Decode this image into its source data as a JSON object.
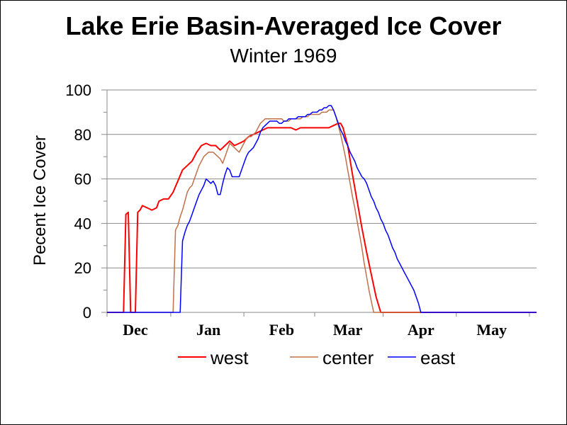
{
  "title": "Lake Erie Basin-Averaged Ice Cover",
  "subtitle": "Winter 1969",
  "chart_data": {
    "type": "line",
    "title": "Lake Erie Basin-Averaged Ice Cover",
    "subtitle": "Winter 1969",
    "ylabel": "Pecent Ice Cover",
    "xlabel": "",
    "ylim": [
      0,
      100
    ],
    "yticks": [
      0,
      20,
      40,
      60,
      80,
      100
    ],
    "xlim": [
      0,
      182
    ],
    "x_unit": "days since Nov 19",
    "xticks": [
      {
        "label": "Dec",
        "x": 12
      },
      {
        "label": "Jan",
        "x": 43
      },
      {
        "label": "Feb",
        "x": 74
      },
      {
        "label": "Mar",
        "x": 102
      },
      {
        "label": "Apr",
        "x": 133
      },
      {
        "label": "May",
        "x": 163
      }
    ],
    "grid": "horizontal",
    "legend": "bottom",
    "series": [
      {
        "name": "west",
        "color": "#ff0000",
        "width": 2,
        "x": [
          0,
          7,
          8,
          9,
          10,
          11,
          12,
          13,
          14,
          15,
          17,
          19,
          21,
          22,
          24,
          26,
          28,
          30,
          32,
          34,
          36,
          38,
          40,
          42,
          44,
          46,
          48,
          50,
          52,
          54,
          56,
          58,
          60,
          62,
          64,
          66,
          68,
          70,
          72,
          74,
          76,
          78,
          80,
          82,
          84,
          86,
          88,
          90,
          92,
          94,
          96,
          98,
          99,
          100,
          102,
          104,
          106,
          108,
          110,
          112,
          114,
          116,
          118,
          120,
          122,
          182
        ],
        "y": [
          0,
          0,
          44,
          45,
          0,
          0,
          0,
          45,
          46,
          48,
          47,
          46,
          47,
          50,
          51,
          51,
          54,
          59,
          64,
          66,
          68,
          72,
          75,
          76,
          75,
          75,
          73,
          75,
          77,
          75,
          76,
          77,
          79,
          80,
          81,
          82,
          83,
          83,
          83,
          83,
          83,
          83,
          82,
          83,
          83,
          83,
          83,
          83,
          83,
          83,
          84,
          85,
          85,
          83,
          75,
          62,
          50,
          38,
          27,
          17,
          7,
          0,
          0,
          0,
          0,
          0
        ]
      },
      {
        "name": "center",
        "color": "#c0704a",
        "width": 1.5,
        "x": [
          0,
          28,
          29,
          30,
          31,
          32,
          33,
          34,
          35,
          36,
          37,
          38,
          39,
          40,
          41,
          42,
          43,
          44,
          45,
          46,
          47,
          48,
          49,
          50,
          51,
          52,
          53,
          54,
          55,
          56,
          57,
          58,
          59,
          60,
          61,
          62,
          63,
          64,
          65,
          66,
          67,
          68,
          69,
          70,
          71,
          72,
          73,
          74,
          75,
          76,
          77,
          78,
          79,
          80,
          81,
          82,
          83,
          84,
          85,
          86,
          87,
          88,
          89,
          90,
          91,
          92,
          93,
          94,
          95,
          96,
          97,
          98,
          99,
          100,
          101,
          102,
          103,
          104,
          105,
          106,
          107,
          108,
          109,
          110,
          111,
          112,
          113,
          114,
          115,
          116,
          117,
          118,
          119,
          120,
          121,
          122,
          182
        ],
        "y": [
          0,
          0,
          37,
          39,
          43,
          46,
          50,
          54,
          56,
          57,
          60,
          63,
          66,
          68,
          70,
          71,
          72,
          72,
          72,
          71,
          70,
          69,
          67,
          70,
          73,
          76,
          75,
          74,
          73,
          72,
          74,
          76,
          78,
          79,
          79,
          80,
          81,
          83,
          85,
          86,
          87,
          87,
          87,
          87,
          87,
          87,
          87,
          87,
          86,
          86,
          86,
          87,
          87,
          87,
          87,
          87,
          88,
          88,
          88,
          89,
          89,
          89,
          89,
          89,
          90,
          90,
          90,
          91,
          91,
          91,
          88,
          84,
          80,
          75,
          70,
          64,
          58,
          52,
          47,
          41,
          35,
          29,
          22,
          16,
          10,
          5,
          0,
          0,
          0,
          0,
          0,
          0,
          0,
          0,
          0,
          0,
          0
        ]
      },
      {
        "name": "east",
        "color": "#0000ff",
        "width": 1.5,
        "x": [
          0,
          31,
          32,
          33,
          34,
          35,
          36,
          37,
          38,
          39,
          40,
          41,
          42,
          43,
          44,
          45,
          46,
          47,
          48,
          49,
          50,
          51,
          52,
          53,
          54,
          55,
          56,
          57,
          58,
          59,
          60,
          61,
          62,
          63,
          64,
          65,
          66,
          67,
          68,
          69,
          70,
          71,
          72,
          73,
          74,
          75,
          76,
          77,
          78,
          79,
          80,
          81,
          82,
          83,
          84,
          85,
          86,
          87,
          88,
          89,
          90,
          91,
          92,
          93,
          94,
          95,
          96,
          97,
          98,
          99,
          100,
          101,
          102,
          103,
          104,
          105,
          106,
          107,
          108,
          109,
          110,
          111,
          112,
          113,
          114,
          115,
          116,
          117,
          118,
          119,
          120,
          121,
          122,
          123,
          124,
          125,
          126,
          127,
          128,
          129,
          130,
          131,
          132,
          133,
          134,
          135,
          136,
          137,
          138,
          139,
          140,
          141,
          142,
          143,
          144,
          145,
          146,
          147,
          148,
          182
        ],
        "y": [
          0,
          0,
          32,
          36,
          39,
          41,
          44,
          47,
          50,
          53,
          55,
          57,
          60,
          59,
          58,
          59,
          57,
          53,
          53,
          58,
          62,
          65,
          64,
          61,
          61,
          61,
          61,
          64,
          67,
          70,
          72,
          73,
          74,
          76,
          78,
          81,
          83,
          84,
          85,
          86,
          86,
          86,
          86,
          85,
          85,
          86,
          86,
          87,
          87,
          87,
          87,
          88,
          88,
          88,
          88,
          89,
          89,
          90,
          90,
          90,
          91,
          91,
          92,
          92,
          93,
          93,
          91,
          88,
          85,
          82,
          80,
          77,
          75,
          72,
          70,
          68,
          65,
          63,
          61,
          60,
          58,
          55,
          52,
          50,
          47,
          45,
          42,
          40,
          37,
          35,
          32,
          29,
          27,
          24,
          22,
          20,
          18,
          16,
          14,
          12,
          10,
          7,
          4,
          0,
          0,
          0,
          0,
          0,
          0,
          0,
          0,
          0,
          0,
          0,
          0,
          0,
          0,
          0,
          0,
          0
        ]
      }
    ]
  }
}
